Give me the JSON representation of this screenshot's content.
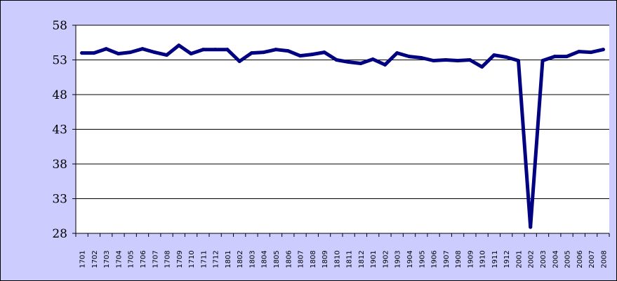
{
  "chart_data": {
    "type": "line",
    "title": "",
    "xlabel": "",
    "ylabel": "",
    "ylim": [
      28,
      58
    ],
    "yticks": [
      28,
      33,
      38,
      43,
      48,
      53,
      58
    ],
    "grid": "horizontal",
    "legend": "none",
    "x": [
      "1701",
      "1702",
      "1703",
      "1704",
      "1705",
      "1706",
      "1707",
      "1708",
      "1709",
      "1710",
      "1711",
      "1712",
      "1801",
      "1802",
      "1803",
      "1804",
      "1805",
      "1806",
      "1807",
      "1808",
      "1809",
      "1810",
      "1811",
      "1812",
      "1901",
      "1902",
      "1903",
      "1904",
      "1905",
      "1906",
      "1907",
      "1908",
      "1909",
      "1910",
      "1911",
      "1912",
      "2001",
      "2002",
      "2003",
      "2004",
      "2005",
      "2006",
      "2007",
      "2008"
    ],
    "series": [
      {
        "color": "#000080",
        "values": [
          54.0,
          54.0,
          54.6,
          53.9,
          54.1,
          54.6,
          54.1,
          53.7,
          55.1,
          53.9,
          54.5,
          54.5,
          54.5,
          52.8,
          54.0,
          54.1,
          54.5,
          54.3,
          53.6,
          53.8,
          54.1,
          53.0,
          52.7,
          52.5,
          53.1,
          52.3,
          54.0,
          53.5,
          53.3,
          52.9,
          53.0,
          52.9,
          53.0,
          52.0,
          53.7,
          53.4,
          52.9,
          28.9,
          52.9,
          53.5,
          53.5,
          54.2,
          54.1,
          54.5
        ]
      }
    ]
  },
  "colors": {
    "background": "#ccccff",
    "plot": "#ffffff",
    "line": "#000080"
  }
}
